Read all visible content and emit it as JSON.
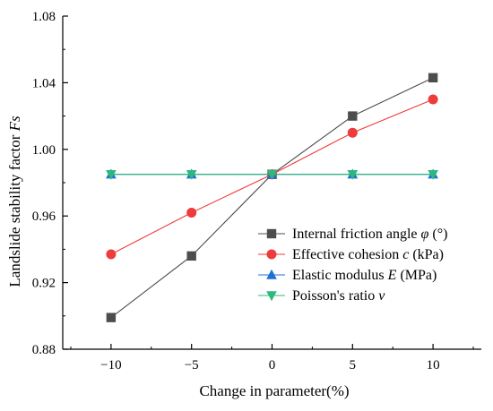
{
  "chart_data": {
    "type": "line",
    "title": "",
    "xlabel": "Change in parameter(%)",
    "ylabel": "Landslide stability factor ",
    "ylabel_symbol": "Fs",
    "x": [
      -10,
      -5,
      0,
      5,
      10
    ],
    "xlim": [
      -13,
      13
    ],
    "ylim": [
      0.88,
      1.08
    ],
    "xticks": [
      -10,
      -5,
      0,
      5,
      10
    ],
    "xtick_labels": [
      "−10",
      "−5",
      "0",
      "5",
      "10"
    ],
    "yticks": [
      0.88,
      0.92,
      0.96,
      1.0,
      1.04,
      1.08
    ],
    "ytick_labels": [
      "0.88",
      "0.92",
      "0.96",
      "1.00",
      "1.04",
      "1.08"
    ],
    "grid": false,
    "legend_position": "center-right",
    "series": [
      {
        "name": "Internal friction angle φ (°)",
        "legend_parts": [
          "Internal friction angle ",
          "φ",
          " (°)"
        ],
        "marker": "square",
        "color": "#4d4d4d",
        "values": [
          0.899,
          0.936,
          0.985,
          1.02,
          1.043
        ]
      },
      {
        "name": "Effective cohesion c (kPa)",
        "legend_parts": [
          "Effective cohesion ",
          "c",
          " (kPa)"
        ],
        "marker": "circle",
        "color": "#ee3b3b",
        "values": [
          0.937,
          0.962,
          0.985,
          1.01,
          1.03
        ]
      },
      {
        "name": "Elastic modulus E (MPa)",
        "legend_parts": [
          "Elastic modulus ",
          "E",
          " (MPa)"
        ],
        "marker": "triangle-up",
        "color": "#1f6fd6",
        "values": [
          0.985,
          0.985,
          0.985,
          0.985,
          0.985
        ]
      },
      {
        "name": "Poisson's ratio v",
        "legend_parts": [
          "Poisson's ratio ",
          "v",
          ""
        ],
        "marker": "triangle-down",
        "color": "#2eb87a",
        "values": [
          0.985,
          0.985,
          0.985,
          0.985,
          0.985
        ]
      }
    ]
  }
}
